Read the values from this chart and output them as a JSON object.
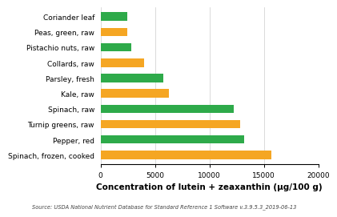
{
  "categories": [
    "Spinach, frozen, cooked",
    "Pepper, red",
    "Turnip greens, raw",
    "Spinach, raw",
    "Kale, raw",
    "Parsley, fresh",
    "Collards, raw",
    "Pistachio nuts, raw",
    "Peas, green, raw",
    "Coriander leaf"
  ],
  "values": [
    15692,
    13157,
    12825,
    12198,
    6260,
    5740,
    4000,
    2832,
    2477,
    2456
  ],
  "colors": [
    "#F5A623",
    "#2EAA4A",
    "#F5A623",
    "#2EAA4A",
    "#F5A623",
    "#2EAA4A",
    "#F5A623",
    "#2EAA4A",
    "#F5A623",
    "#2EAA4A"
  ],
  "xlabel": "Concentration of lutein + zeaxanthin (μg/100 g)",
  "xlim": [
    0,
    20000
  ],
  "xticks": [
    0,
    5000,
    10000,
    15000,
    20000
  ],
  "source_text": "Source: USDA National Nutrient Database for Standard Reference 1 Software v.3.9.5.3_2019-06-13",
  "bg_color": "#FFFFFF",
  "bar_height": 0.55,
  "xlabel_fontsize": 7.5,
  "tick_fontsize": 6.5,
  "label_fontsize": 6.5,
  "source_fontsize": 4.8
}
